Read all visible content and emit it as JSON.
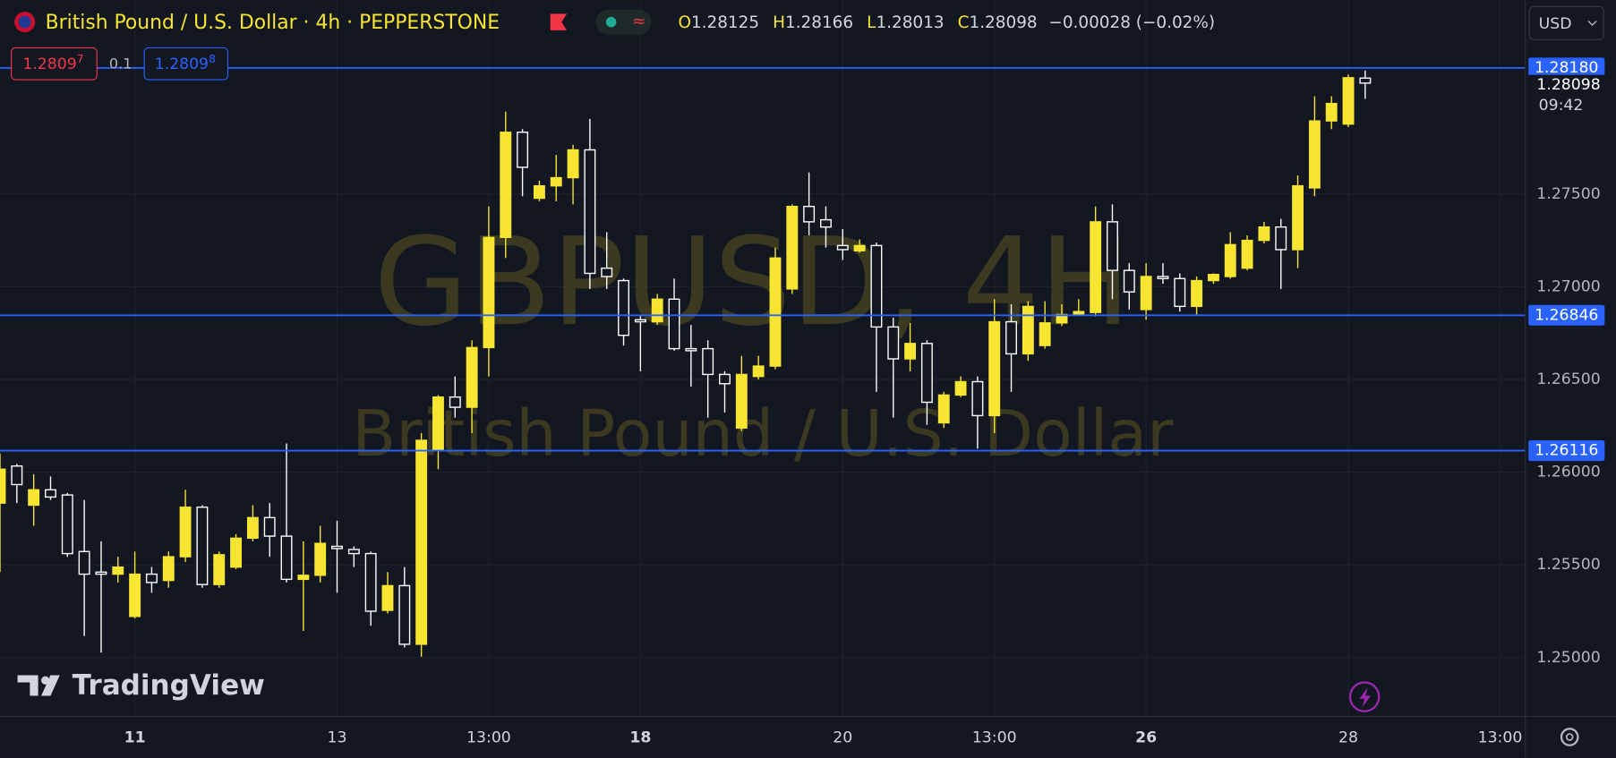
{
  "header": {
    "title": "British Pound / U.S. Dollar · 4h · PEPPERSTONE",
    "ohlc_labels": [
      "O",
      "H",
      "L",
      "C"
    ],
    "change": "−0.00028 (−0.02%)",
    "currency": "USD",
    "sell": "1.2809",
    "sell_sup": "7",
    "spread": "0.1",
    "buy": "1.2809",
    "buy_sup": "8",
    "countdown": "09:42",
    "logo": "TradingView",
    "watermark": "GBPUSD, 4H",
    "watermark_sub": "British Pound / U.S. Dollar"
  },
  "chart_data": {
    "type": "candlestick",
    "up_color": "#f7e531",
    "down_color": "#ffffff",
    "line_color": "#2962ff",
    "grid": true,
    "x": [
      0,
      1,
      2,
      3,
      4,
      5,
      6,
      7,
      8,
      9,
      10,
      11,
      12,
      13,
      14,
      15,
      16,
      17,
      18,
      19,
      20,
      21,
      22,
      23,
      24,
      25,
      26,
      27,
      28,
      29,
      30,
      31,
      32,
      33,
      34,
      35,
      36,
      37,
      38,
      39,
      40,
      41,
      42,
      43,
      44,
      45,
      46,
      47,
      48,
      49,
      50,
      51,
      52,
      53,
      54,
      55,
      56,
      57,
      58,
      59,
      60,
      61,
      62,
      63,
      64,
      65,
      66,
      67,
      68,
      69,
      70,
      71,
      72,
      73,
      74,
      75,
      76,
      77,
      78,
      79,
      80,
      81
    ],
    "open": [
      1.25833,
      1.26033,
      1.25822,
      1.25905,
      1.25877,
      1.25572,
      1.25461,
      1.2545,
      1.25222,
      1.2545,
      1.25416,
      1.25544,
      1.25811,
      1.25394,
      1.25488,
      1.25644,
      1.25755,
      1.25655,
      1.25422,
      1.25444,
      1.256,
      1.25583,
      1.25561,
      1.25255,
      1.25388,
      1.25072,
      1.26116,
      1.26405,
      1.2635,
      1.26672,
      1.27266,
      1.27833,
      1.27477,
      1.27544,
      1.27588,
      1.27738,
      1.271,
      1.27033,
      1.26822,
      1.26811,
      1.26933,
      1.26666,
      1.26666,
      1.26527,
      1.26238,
      1.26516,
      1.26572,
      1.26988,
      1.27433,
      1.27361,
      1.27222,
      1.27194,
      1.27222,
      1.26783,
      1.26611,
      1.26694,
      1.26266,
      1.26416,
      1.26488,
      1.26305,
      1.26811,
      1.26638,
      1.26683,
      1.26805,
      1.2685,
      1.26861,
      1.2735,
      1.27088,
      1.26877,
      1.27055,
      1.27044,
      1.26894,
      1.27033,
      1.27055,
      1.271,
      1.2725,
      1.27322,
      1.272,
      1.27533,
      1.27894,
      1.27877,
      1.28125
    ],
    "high": [
      1.261,
      1.26044,
      1.25989,
      1.25977,
      1.25888,
      1.2585,
      1.25627,
      1.25544,
      1.25572,
      1.25488,
      1.25572,
      1.25905,
      1.25822,
      1.25572,
      1.25666,
      1.25822,
      1.25833,
      1.26155,
      1.25627,
      1.25711,
      1.25738,
      1.256,
      1.25572,
      1.25461,
      1.25488,
      1.26211,
      1.26416,
      1.26516,
      1.26711,
      1.27433,
      1.27944,
      1.2785,
      1.27572,
      1.27711,
      1.27766,
      1.27905,
      1.27294,
      1.27044,
      1.2685,
      1.26961,
      1.27044,
      1.26794,
      1.26711,
      1.26544,
      1.26627,
      1.26627,
      1.27211,
      1.27444,
      1.27616,
      1.27433,
      1.27311,
      1.27255,
      1.27238,
      1.26833,
      1.26805,
      1.26711,
      1.26433,
      1.26516,
      1.26516,
      1.26933,
      1.26905,
      1.26922,
      1.26922,
      1.26905,
      1.26933,
      1.27433,
      1.27444,
      1.27127,
      1.27127,
      1.27127,
      1.27072,
      1.27055,
      1.27072,
      1.27294,
      1.27277,
      1.2735,
      1.27366,
      1.276,
      1.28027,
      1.28027,
      1.28144,
      1.28166
    ],
    "low": [
      1.25461,
      1.25833,
      1.25711,
      1.2585,
      1.25544,
      1.25116,
      1.25027,
      1.25405,
      1.25211,
      1.2535,
      1.25377,
      1.25516,
      1.25377,
      1.25377,
      1.25477,
      1.25627,
      1.25544,
      1.25405,
      1.25144,
      1.25405,
      1.2535,
      1.25488,
      1.25172,
      1.25238,
      1.25055,
      1.25005,
      1.26016,
      1.26294,
      1.26211,
      1.26516,
      1.27155,
      1.27488,
      1.27461,
      1.27461,
      1.27444,
      1.26988,
      1.26988,
      1.26683,
      1.26544,
      1.26794,
      1.26655,
      1.26461,
      1.26294,
      1.26322,
      1.26222,
      1.265,
      1.26555,
      1.26961,
      1.27277,
      1.27211,
      1.27144,
      1.27183,
      1.26433,
      1.26294,
      1.26544,
      1.26255,
      1.26238,
      1.26405,
      1.26127,
      1.26211,
      1.26433,
      1.266,
      1.26666,
      1.26788,
      1.26844,
      1.26839,
      1.26933,
      1.26877,
      1.26822,
      1.27016,
      1.26866,
      1.2685,
      1.27016,
      1.27044,
      1.27088,
      1.27233,
      1.26988,
      1.271,
      1.27488,
      1.2785,
      1.27861,
      1.28013
    ],
    "close": [
      1.26016,
      1.25933,
      1.25905,
      1.25866,
      1.25561,
      1.2545,
      1.2545,
      1.25488,
      1.2545,
      1.25405,
      1.25544,
      1.25811,
      1.25394,
      1.25555,
      1.25644,
      1.25755,
      1.25655,
      1.25422,
      1.25444,
      1.25616,
      1.25588,
      1.25561,
      1.2525,
      1.25388,
      1.25072,
      1.26172,
      1.26405,
      1.2635,
      1.26672,
      1.27266,
      1.27833,
      1.27644,
      1.27544,
      1.27588,
      1.27738,
      1.27072,
      1.27055,
      1.26738,
      1.26811,
      1.26933,
      1.26666,
      1.26655,
      1.26527,
      1.26477,
      1.26527,
      1.26572,
      1.27155,
      1.27433,
      1.2735,
      1.27322,
      1.272,
      1.27222,
      1.26783,
      1.26611,
      1.26694,
      1.26377,
      1.26416,
      1.26488,
      1.26305,
      1.26811,
      1.26638,
      1.26894,
      1.26805,
      1.2685,
      1.26866,
      1.2735,
      1.27088,
      1.26972,
      1.27055,
      1.27044,
      1.26894,
      1.27033,
      1.27066,
      1.27227,
      1.2725,
      1.27322,
      1.272,
      1.27544,
      1.27894,
      1.27988,
      1.28127,
      1.28098
    ],
    "xlim": [
      0,
      90.5
    ],
    "ylim": [
      1.24683,
      1.28544
    ],
    "xticks": [
      {
        "value": 8,
        "label": "11",
        "bold": true
      },
      {
        "value": 20,
        "label": "13"
      },
      {
        "value": 29,
        "label": "13:00"
      },
      {
        "value": 38,
        "label": "18",
        "bold": true
      },
      {
        "value": 50,
        "label": "20"
      },
      {
        "value": 59,
        "label": "13:00"
      },
      {
        "value": 68,
        "label": "26",
        "bold": true
      },
      {
        "value": 80,
        "label": "28"
      },
      {
        "value": 89,
        "label": "13:00"
      }
    ],
    "yticks": [
      {
        "value": 1.25,
        "label": "1.25000"
      },
      {
        "value": 1.255,
        "label": "1.25500"
      },
      {
        "value": 1.26,
        "label": "1.26000"
      },
      {
        "value": 1.265,
        "label": "1.26500"
      },
      {
        "value": 1.27,
        "label": "1.27000"
      },
      {
        "value": 1.275,
        "label": "1.27500"
      }
    ],
    "hlines": [
      {
        "value": 1.2818,
        "label": "1.28180"
      },
      {
        "value": 1.26846,
        "label": "1.26846"
      },
      {
        "value": 1.26116,
        "label": "1.26116"
      }
    ]
  }
}
